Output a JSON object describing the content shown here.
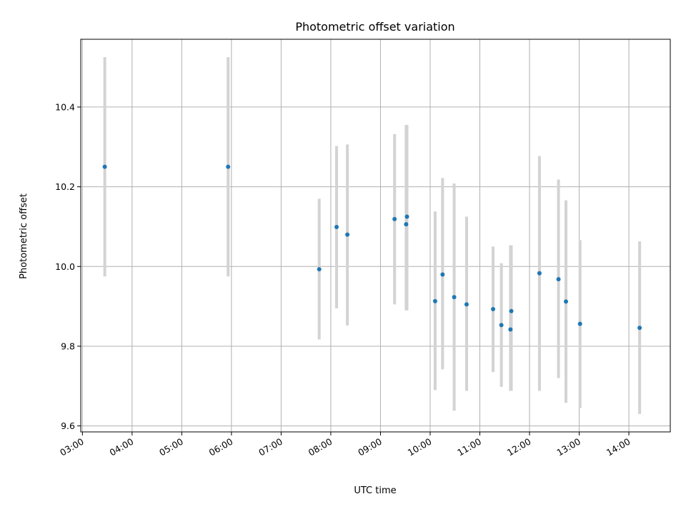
{
  "chart_data": {
    "type": "scatter",
    "title": "Photometric offset variation",
    "xlabel": "UTC time",
    "ylabel": "Photometric offset",
    "x_tick_labels": [
      "03:00",
      "04:00",
      "05:00",
      "06:00",
      "07:00",
      "08:00",
      "09:00",
      "10:00",
      "11:00",
      "12:00",
      "13:00",
      "14:00"
    ],
    "y_tick_labels": [
      "9.6",
      "9.8",
      "10.0",
      "10.2",
      "10.4"
    ],
    "xlim": [
      "02:58",
      "14:50"
    ],
    "ylim": [
      9.585,
      10.57
    ],
    "grid": true,
    "colors": {
      "point": "#1f77b4",
      "errorbar": "#d3d3d3",
      "grid": "#b0b0b0"
    },
    "series": [
      {
        "points": [
          {
            "x": "03:27",
            "y": 10.25,
            "low": 9.975,
            "high": 10.525
          },
          {
            "x": "05:56",
            "y": 10.25,
            "low": 9.975,
            "high": 10.525
          },
          {
            "x": "07:46",
            "y": 9.993,
            "low": 9.817,
            "high": 10.17
          },
          {
            "x": "08:07",
            "y": 10.099,
            "low": 9.895,
            "high": 10.302
          },
          {
            "x": "08:20",
            "y": 10.08,
            "low": 9.852,
            "high": 10.306
          },
          {
            "x": "09:17",
            "y": 10.119,
            "low": 9.905,
            "high": 10.332
          },
          {
            "x": "09:31",
            "y": 10.106,
            "low": 9.89,
            "high": 10.355
          },
          {
            "x": "09:32",
            "y": 10.125,
            "low": 9.89,
            "high": 10.355
          },
          {
            "x": "10:06",
            "y": 9.913,
            "low": 9.69,
            "high": 10.138
          },
          {
            "x": "10:15",
            "y": 9.98,
            "low": 9.742,
            "high": 10.222
          },
          {
            "x": "10:29",
            "y": 9.923,
            "low": 9.638,
            "high": 10.208
          },
          {
            "x": "10:44",
            "y": 9.905,
            "low": 9.688,
            "high": 10.125
          },
          {
            "x": "11:16",
            "y": 9.893,
            "low": 9.735,
            "high": 10.05
          },
          {
            "x": "11:26",
            "y": 9.853,
            "low": 9.698,
            "high": 10.008
          },
          {
            "x": "11:37",
            "y": 9.842,
            "low": 9.688,
            "high": 10.053
          },
          {
            "x": "11:38",
            "y": 9.888,
            "low": 9.688,
            "high": 10.053
          },
          {
            "x": "12:12",
            "y": 9.983,
            "low": 9.688,
            "high": 10.277
          },
          {
            "x": "12:35",
            "y": 9.968,
            "low": 9.72,
            "high": 10.218
          },
          {
            "x": "12:44",
            "y": 9.912,
            "low": 9.658,
            "high": 10.166
          },
          {
            "x": "13:01",
            "y": 9.856,
            "low": 9.645,
            "high": 10.066
          },
          {
            "x": "14:13",
            "y": 9.846,
            "low": 9.63,
            "high": 10.063
          }
        ]
      }
    ]
  }
}
